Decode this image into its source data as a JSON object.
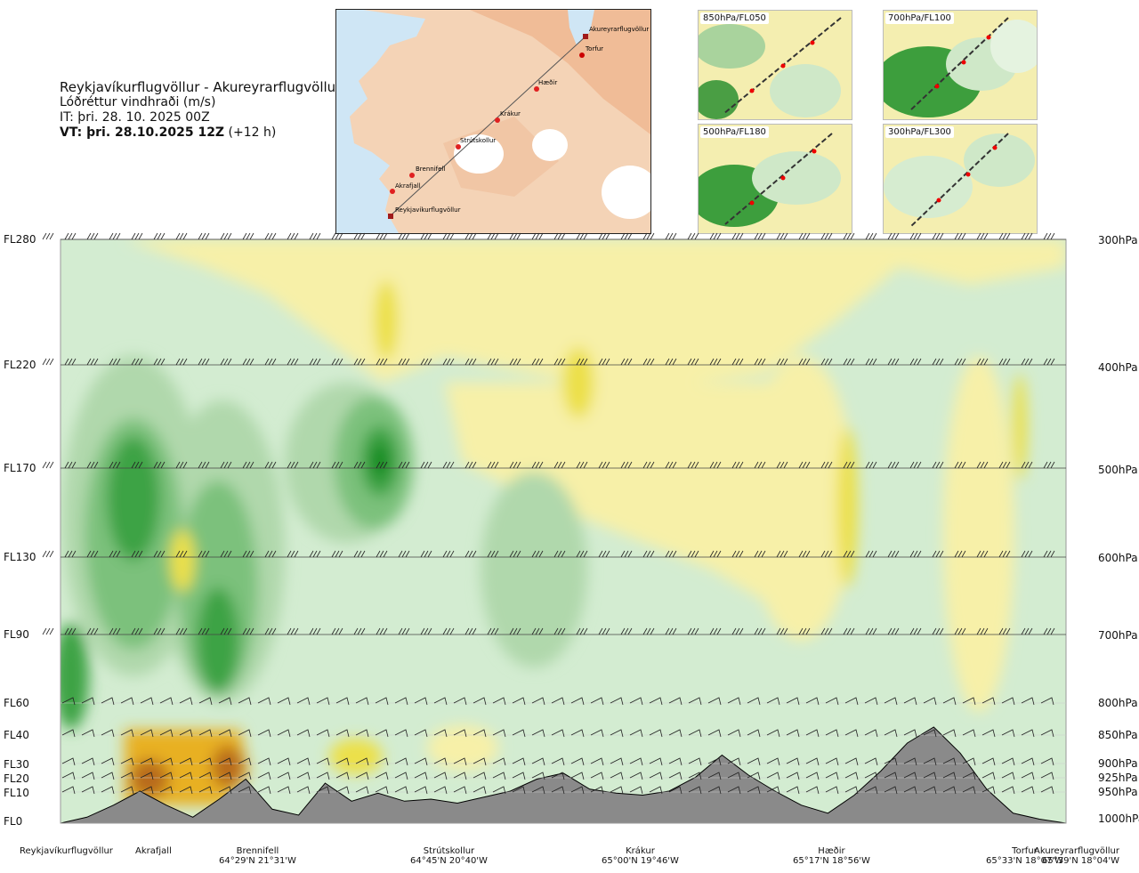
{
  "header": {
    "route": "Reykjavíkurflugvöllur - Akureyrarflugvöllur",
    "variable": "Lóðréttur vindhraði (m/s)",
    "issue_time": "IT: þri. 28. 10. 2025 00Z",
    "valid_label": "VT: þri. 28.10.2025 12Z",
    "valid_offset": "(+12 h)"
  },
  "map": {
    "waypoints": [
      {
        "name": "Akureyrarflugvöllur"
      },
      {
        "name": "Torfur"
      },
      {
        "name": "Hæðir"
      },
      {
        "name": "Krákur"
      },
      {
        "name": "Strútskollur"
      },
      {
        "name": "Brennifell"
      },
      {
        "name": "Akrafjall"
      },
      {
        "name": "Reykjavíkurflugvöllur"
      }
    ]
  },
  "mini_maps": [
    {
      "label": "850hPa/FL050"
    },
    {
      "label": "700hPa/FL100"
    },
    {
      "label": "500hPa/FL180"
    },
    {
      "label": "300hPa/FL300"
    }
  ],
  "colors": {
    "strong_up": "#0c8a1c",
    "up3": "#3da344",
    "up2": "#7cc17c",
    "up1": "#b0d8ac",
    "weak_up": "#d3ecd1",
    "neutral": "#eef7ec",
    "weak_down": "#f7f0a8",
    "down2": "#ece04a",
    "down3": "#e8b020",
    "down4": "#b86a1c",
    "terrain": "#8a8a8a"
  },
  "chart_data": {
    "type": "heatmap",
    "title": "Lóðréttur vindhraði (m/s)",
    "xlabel": "",
    "ylabel": "",
    "levels_left": [
      "FL280",
      "FL220",
      "FL170",
      "FL130",
      "FL90",
      "FL60",
      "FL40",
      "FL30",
      "FL20",
      "FL10",
      "FL0"
    ],
    "levels_right": [
      "300hPa",
      "400hPa",
      "500hPa",
      "600hPa",
      "700hPa",
      "800hPa",
      "850hPa",
      "900hPa",
      "925hPa",
      "950hPa",
      "1000hPa"
    ],
    "stations": [
      {
        "name": "Reykjavíkurflugvöllur",
        "coord": ""
      },
      {
        "name": "Akrafjall",
        "coord": ""
      },
      {
        "name": "Brennifell",
        "coord": "64°29'N 21°31'W"
      },
      {
        "name": "Strútskollur",
        "coord": "64°45'N 20°40'W"
      },
      {
        "name": "Krákur",
        "coord": "65°00'N 19°46'W"
      },
      {
        "name": "Hæðir",
        "coord": "65°17'N 18°56'W"
      },
      {
        "name": "Torfur",
        "coord": "65°33'N 18°07'W"
      },
      {
        "name": "Akureyrarflugvöllur",
        "coord": "65°39'N 18°04'W"
      }
    ],
    "terrain_profile_ft": [
      0,
      300,
      900,
      1600,
      900,
      300,
      1200,
      2200,
      700,
      400,
      2000,
      1100,
      1500,
      1100,
      1200,
      1000,
      1300,
      1600,
      2200,
      2500,
      1700,
      1500,
      1400,
      1600,
      2300,
      3400,
      2400,
      1600,
      900,
      500,
      1400,
      2600,
      4000,
      4800,
      3500,
      1700,
      500,
      200,
      0
    ]
  }
}
